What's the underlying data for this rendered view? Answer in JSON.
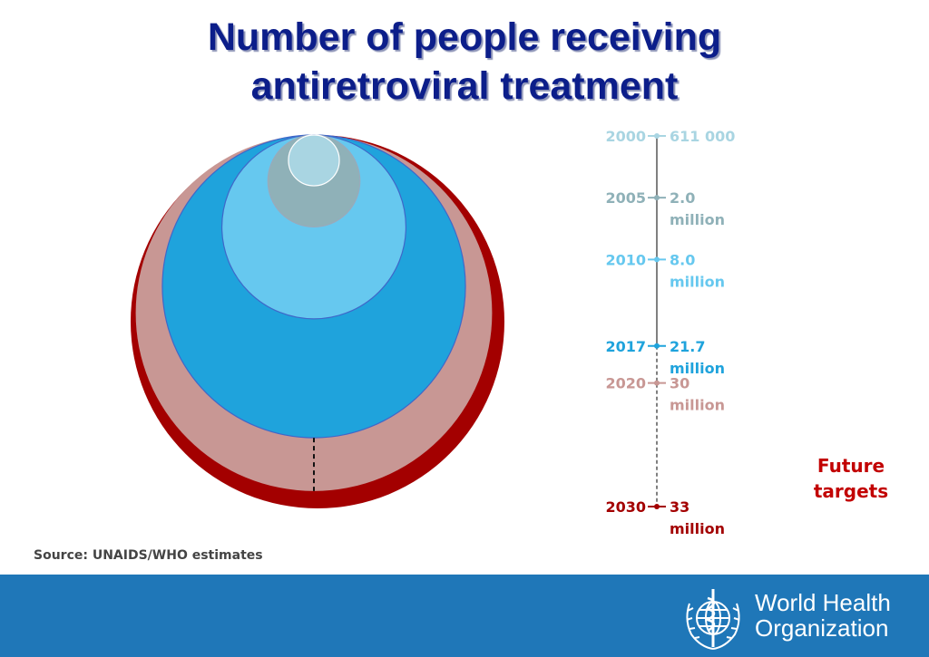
{
  "title": {
    "line1": "Number of people receiving",
    "line2": "antiretroviral treatment"
  },
  "source": "Source: UNAIDS/WHO estimates",
  "future_targets": {
    "line1": "Future",
    "line2": "targets"
  },
  "footer": {
    "org_line1": "World Health",
    "org_line2": "Organization",
    "logo_icon": "who-emblem-icon",
    "background": "#1f77b8"
  },
  "chart_data": {
    "type": "bubble-timeline",
    "title": "Number of people receiving antiretroviral treatment",
    "unit": "people",
    "points": [
      {
        "year": "2000",
        "value": 611000,
        "label_line1": "611 000",
        "label_line2": "",
        "color": "#a9d5e2",
        "target": false
      },
      {
        "year": "2005",
        "value": 2000000,
        "label_line1": "2.0",
        "label_line2": "million",
        "color": "#8fb1b8",
        "target": false
      },
      {
        "year": "2010",
        "value": 8000000,
        "label_line1": "8.0",
        "label_line2": "million",
        "color": "#66c8ef",
        "target": false
      },
      {
        "year": "2017",
        "value": 21700000,
        "label_line1": "21.7",
        "label_line2": "million",
        "color": "#1fa3dc",
        "target": false
      },
      {
        "year": "2020",
        "value": 30000000,
        "label_line1": "30",
        "label_line2": "million",
        "color": "#c89794",
        "target": true
      },
      {
        "year": "2030",
        "value": 33000000,
        "label_line1": "33",
        "label_line2": "million",
        "color": "#a30000",
        "target": true
      }
    ]
  }
}
